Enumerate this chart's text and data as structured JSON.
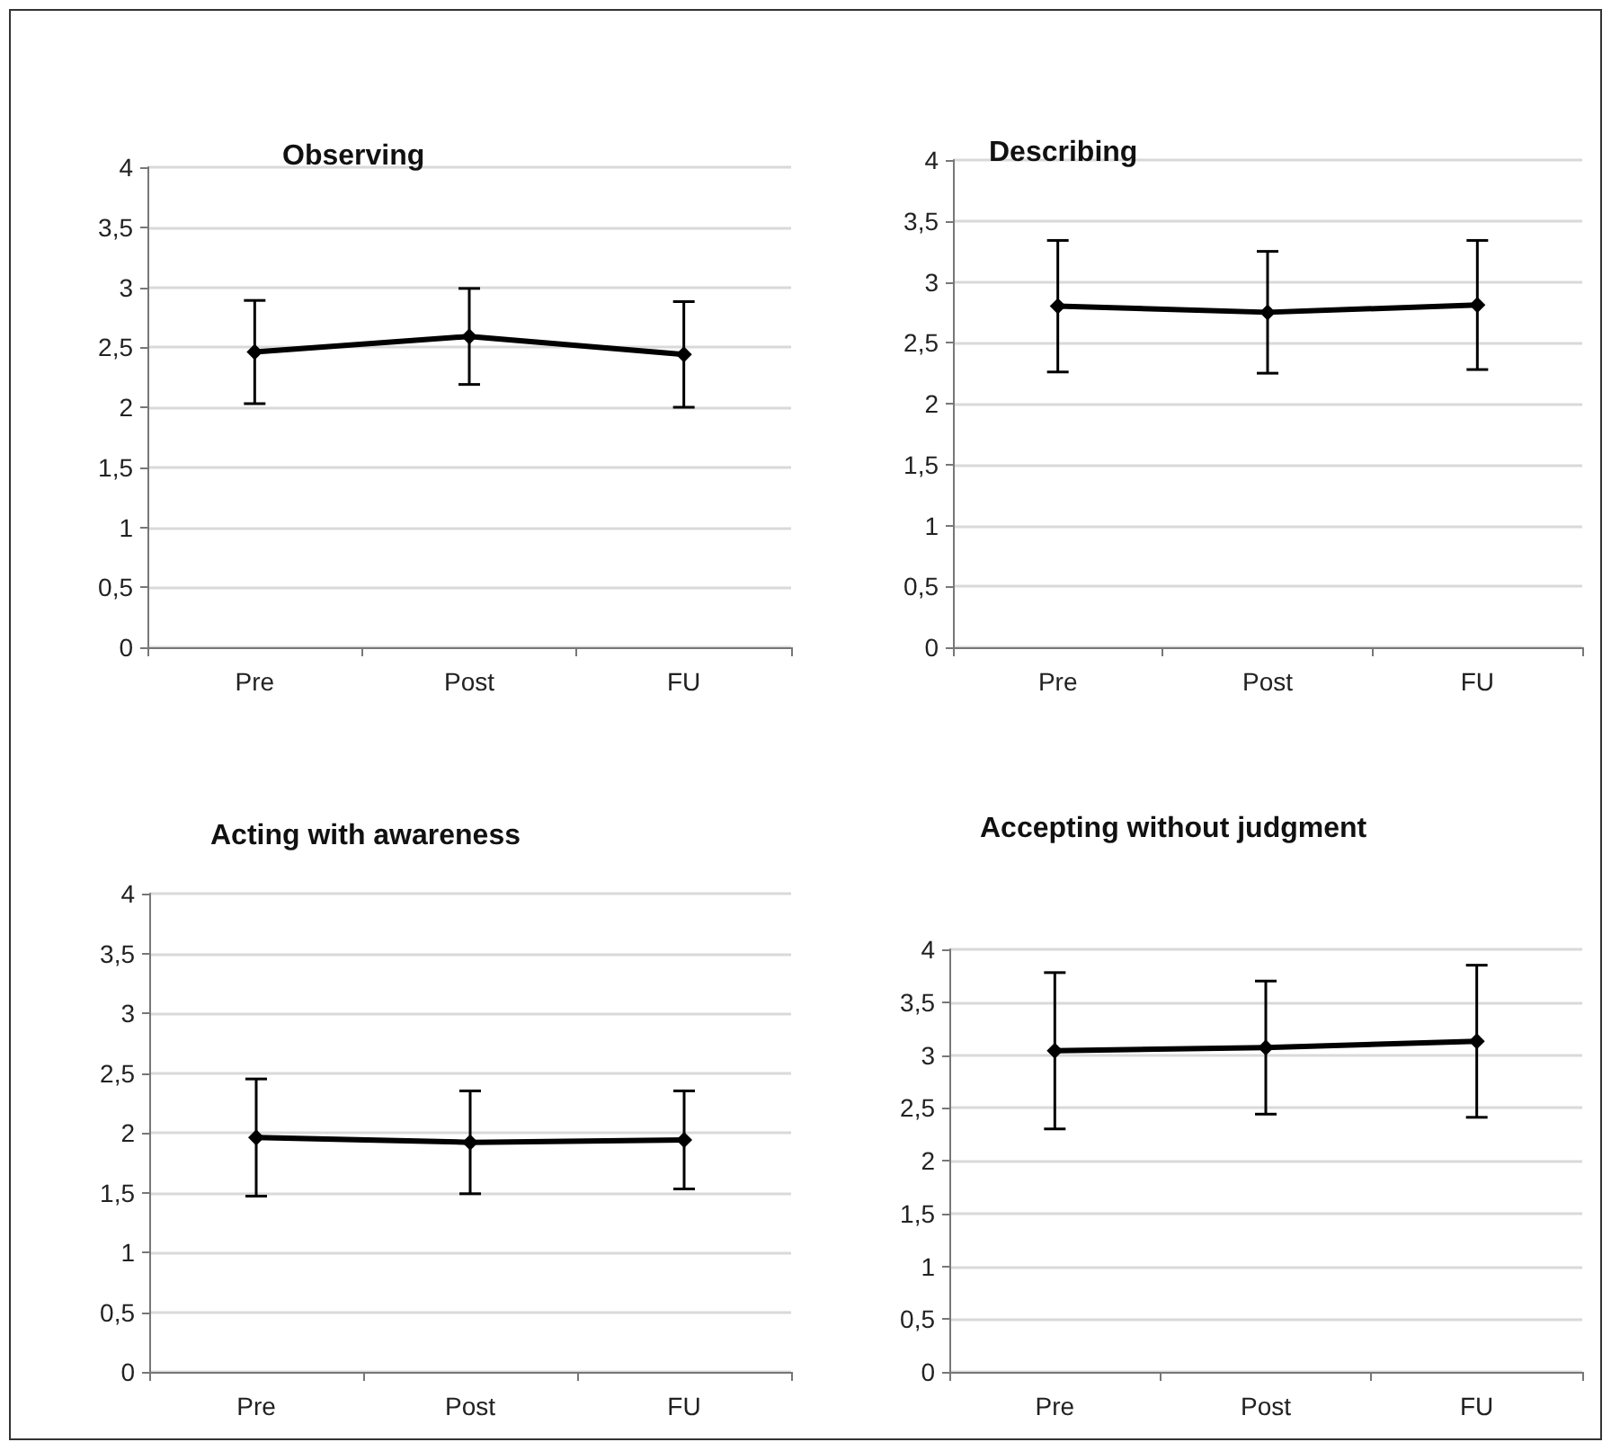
{
  "chart_data": [
    {
      "type": "line",
      "title": "Observing",
      "categories": [
        "Pre",
        "Post",
        "FU"
      ],
      "series": [
        {
          "color": "#000000",
          "values": [
            2.46,
            2.59,
            2.44
          ],
          "errors": [
            0.43,
            0.4,
            0.44
          ]
        }
      ],
      "ylim": [
        0,
        4
      ],
      "yticks": [
        0,
        {
          "value": 0.5,
          "label": "0,5"
        },
        1,
        {
          "value": 1.5,
          "label": "1,5"
        },
        2,
        {
          "value": 2.5,
          "label": "2,5"
        },
        3,
        {
          "value": 3.5,
          "label": "3,5"
        },
        4
      ],
      "grid": "y",
      "marker": "diamond",
      "line_style": "solid"
    },
    {
      "type": "line",
      "title": "Describing",
      "categories": [
        "Pre",
        "Post",
        "FU"
      ],
      "series": [
        {
          "color": "#000000",
          "values": [
            2.8,
            2.75,
            2.81
          ],
          "errors": [
            0.54,
            0.5,
            0.53
          ]
        }
      ],
      "ylim": [
        0,
        4
      ],
      "yticks": [
        0,
        {
          "value": 0.5,
          "label": "0,5"
        },
        1,
        {
          "value": 1.5,
          "label": "1,5"
        },
        2,
        {
          "value": 2.5,
          "label": "2,5"
        },
        3,
        {
          "value": 3.5,
          "label": "3,5"
        },
        4
      ],
      "grid": "y",
      "marker": "diamond",
      "line_style": "solid"
    },
    {
      "type": "line",
      "title": "Acting with awareness",
      "categories": [
        "Pre",
        "Post",
        "FU"
      ],
      "series": [
        {
          "color": "#000000",
          "values": [
            1.96,
            1.92,
            1.94
          ],
          "errors": [
            0.49,
            0.43,
            0.41
          ]
        }
      ],
      "ylim": [
        0,
        4
      ],
      "yticks": [
        0,
        {
          "value": 0.5,
          "label": "0,5"
        },
        1,
        {
          "value": 1.5,
          "label": "1,5"
        },
        2,
        {
          "value": 2.5,
          "label": "2,5"
        },
        3,
        {
          "value": 3.5,
          "label": "3,5"
        },
        4
      ],
      "grid": "y",
      "marker": "diamond",
      "line_style": "solid"
    },
    {
      "type": "line",
      "title": "Accepting without judgment",
      "categories": [
        "Pre",
        "Post",
        "FU"
      ],
      "series": [
        {
          "color": "#000000",
          "values": [
            3.04,
            3.07,
            3.13
          ],
          "errors": [
            0.74,
            0.63,
            0.72
          ]
        }
      ],
      "ylim": [
        0,
        4
      ],
      "yticks": [
        0,
        {
          "value": 0.5,
          "label": "0,5"
        },
        1,
        {
          "value": 1.5,
          "label": "1,5"
        },
        2,
        {
          "value": 2.5,
          "label": "2,5"
        },
        3,
        {
          "value": 3.5,
          "label": "3,5"
        },
        4
      ],
      "grid": "y",
      "marker": "diamond",
      "line_style": "solid"
    }
  ]
}
